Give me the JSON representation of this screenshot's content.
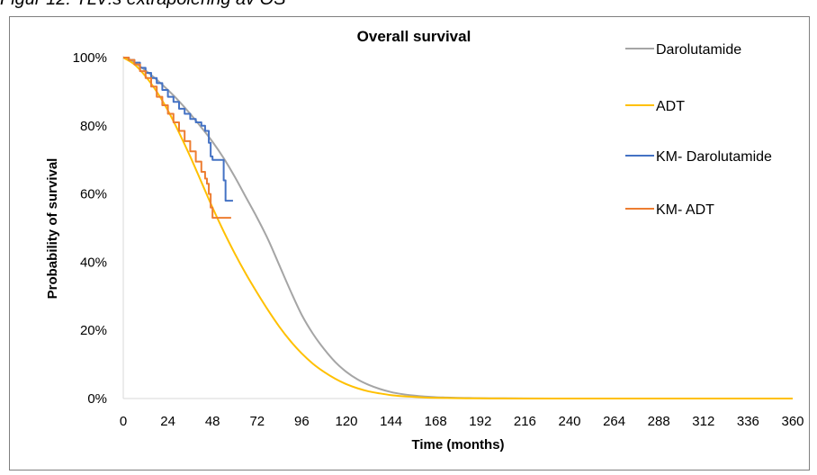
{
  "caption": "Figur 12: TLV:s extrapolering av OS",
  "chart_data": {
    "type": "line",
    "title": "Overall survival",
    "xlabel": "Time (months)",
    "ylabel": "Probability of survival",
    "xlim": [
      0,
      360
    ],
    "ylim": [
      0,
      1
    ],
    "x_ticks": [
      "0",
      "24",
      "48",
      "72",
      "96",
      "120",
      "144",
      "168",
      "192",
      "216",
      "240",
      "264",
      "288",
      "312",
      "336",
      "360"
    ],
    "y_ticks": [
      "0%",
      "20%",
      "40%",
      "60%",
      "80%",
      "100%"
    ],
    "grid": false,
    "legend_position": "right",
    "series": [
      {
        "name": "Darolutamide",
        "color": "#a5a5a5",
        "style": "smooth",
        "x": [
          0,
          6,
          12,
          18,
          24,
          30,
          36,
          42,
          48,
          54,
          60,
          66,
          72,
          78,
          84,
          90,
          96,
          102,
          108,
          114,
          120,
          126,
          132,
          138,
          144,
          150,
          156,
          162,
          168,
          174,
          180,
          186,
          192,
          198,
          204,
          216,
          240,
          264,
          288,
          312,
          336,
          360
        ],
        "y": [
          1.0,
          0.985,
          0.962,
          0.935,
          0.905,
          0.872,
          0.835,
          0.795,
          0.753,
          0.705,
          0.65,
          0.59,
          0.53,
          0.465,
          0.39,
          0.315,
          0.245,
          0.19,
          0.145,
          0.107,
          0.078,
          0.056,
          0.04,
          0.028,
          0.019,
          0.013,
          0.009,
          0.006,
          0.004,
          0.003,
          0.002,
          0.0015,
          0.001,
          0.0007,
          0.0005,
          0.0002,
          0,
          0,
          0,
          0,
          0,
          0
        ]
      },
      {
        "name": "ADT",
        "color": "#ffc000",
        "style": "smooth",
        "x": [
          0,
          6,
          12,
          18,
          24,
          30,
          36,
          42,
          48,
          54,
          60,
          66,
          72,
          78,
          84,
          90,
          96,
          102,
          108,
          114,
          120,
          126,
          132,
          138,
          144,
          150,
          156,
          162,
          168,
          174,
          180,
          186,
          192,
          198,
          204,
          216,
          240,
          264,
          288,
          312,
          336,
          360
        ],
        "y": [
          1.0,
          0.98,
          0.945,
          0.9,
          0.845,
          0.78,
          0.71,
          0.635,
          0.56,
          0.49,
          0.425,
          0.365,
          0.31,
          0.258,
          0.21,
          0.168,
          0.132,
          0.102,
          0.078,
          0.058,
          0.042,
          0.03,
          0.021,
          0.015,
          0.01,
          0.007,
          0.005,
          0.003,
          0.002,
          0.0015,
          0.001,
          0.0007,
          0.0005,
          0.0003,
          0.0002,
          0.0001,
          0,
          0,
          0,
          0,
          0,
          0
        ]
      },
      {
        "name": "KM- Darolutamide",
        "color": "#4472c4",
        "style": "step",
        "x": [
          0,
          3,
          6,
          9,
          12,
          15,
          18,
          21,
          24,
          27,
          30,
          33,
          36,
          39,
          42,
          44,
          46,
          47,
          48,
          50,
          52,
          54,
          55,
          57,
          59
        ],
        "y": [
          1.0,
          0.993,
          0.985,
          0.97,
          0.955,
          0.94,
          0.925,
          0.905,
          0.885,
          0.87,
          0.85,
          0.835,
          0.82,
          0.81,
          0.8,
          0.785,
          0.75,
          0.71,
          0.7,
          0.7,
          0.7,
          0.64,
          0.58,
          0.58,
          0.58
        ]
      },
      {
        "name": "KM- ADT",
        "color": "#ed7d31",
        "style": "step",
        "x": [
          0,
          3,
          6,
          9,
          12,
          15,
          18,
          21,
          24,
          27,
          30,
          33,
          36,
          39,
          42,
          44,
          45,
          46,
          47,
          48,
          50,
          52,
          55,
          58
        ],
        "y": [
          1.0,
          0.993,
          0.98,
          0.96,
          0.94,
          0.915,
          0.885,
          0.86,
          0.835,
          0.81,
          0.785,
          0.755,
          0.725,
          0.695,
          0.665,
          0.645,
          0.63,
          0.6,
          0.56,
          0.53,
          0.53,
          0.53,
          0.53,
          0.53
        ]
      }
    ]
  }
}
